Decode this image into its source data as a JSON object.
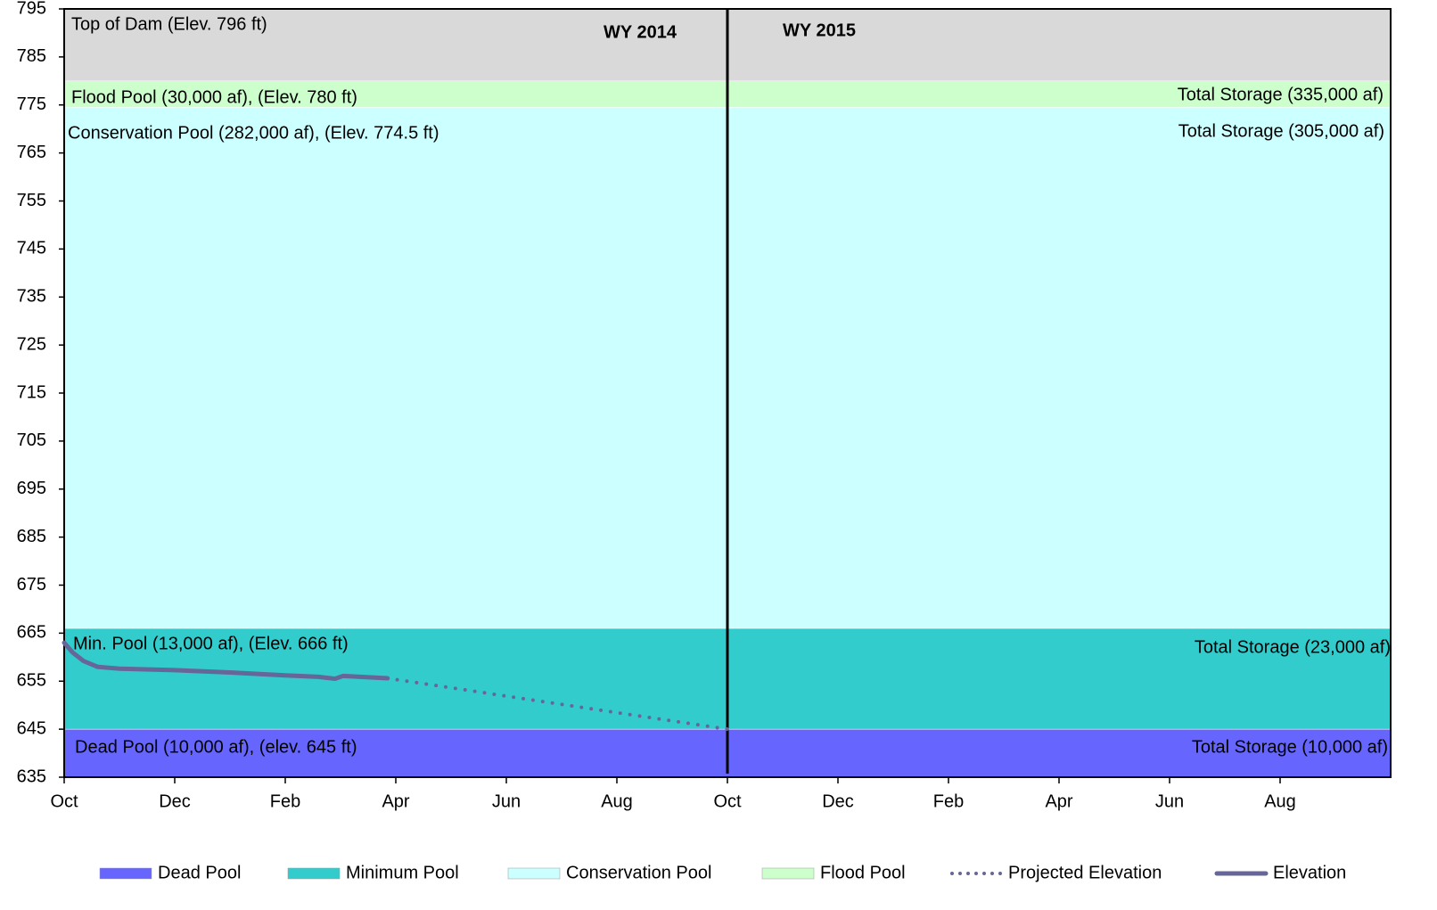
{
  "chart_data": {
    "type": "band-line",
    "ylim": [
      635,
      795
    ],
    "yticks": [
      635,
      645,
      655,
      665,
      675,
      685,
      695,
      705,
      715,
      725,
      735,
      745,
      755,
      765,
      775,
      785,
      795
    ],
    "xlim": [
      0,
      24
    ],
    "xticks": [
      {
        "value": 0,
        "label": "Oct"
      },
      {
        "value": 2,
        "label": "Dec"
      },
      {
        "value": 4,
        "label": "Feb"
      },
      {
        "value": 6,
        "label": "Apr"
      },
      {
        "value": 8,
        "label": "Jun"
      },
      {
        "value": 10,
        "label": "Aug"
      },
      {
        "value": 12,
        "label": "Oct"
      },
      {
        "value": 14,
        "label": "Dec"
      },
      {
        "value": 16,
        "label": "Feb"
      },
      {
        "value": 18,
        "label": "Apr"
      },
      {
        "value": 20,
        "label": "Jun"
      },
      {
        "value": 22,
        "label": "Aug"
      }
    ],
    "divider": 12,
    "bands": [
      {
        "name": "Dead Pool",
        "color": "#6666ff",
        "lower": 635,
        "upper": 645
      },
      {
        "name": "Minimum Pool",
        "color": "#33cccc",
        "lower": 645,
        "upper": 666
      },
      {
        "name": "Conservation Pool",
        "color": "#ccffff",
        "lower": 666,
        "upper": 774.5
      },
      {
        "name": "Flood Pool",
        "color": "#ccffcc",
        "lower": 774.5,
        "upper": 780
      }
    ],
    "series": [
      {
        "name": "Projected Elevation",
        "color": "#666699",
        "style": "dotted",
        "x": [
          5.85,
          12
        ],
        "values": [
          655.6,
          645
        ]
      },
      {
        "name": "Elevation",
        "color": "#666699",
        "style": "solid",
        "x": [
          0,
          0.15,
          0.35,
          0.6,
          1,
          2,
          3,
          4,
          4.6,
          4.9,
          5.05,
          5.85
        ],
        "values": [
          663,
          661,
          659.2,
          658,
          657.6,
          657.3,
          656.8,
          656.2,
          655.9,
          655.5,
          656.1,
          655.6
        ]
      }
    ],
    "annotations": [
      "Top of Dam (Elev. 796 ft)",
      "WY 2014",
      "WY 2015",
      "Flood Pool (30,000 af), (Elev. 780 ft)",
      "Total Storage (335,000 af)",
      "Conservation Pool (282,000 af), (Elev. 774.5 ft)",
      "Total Storage (305,000 af)",
      "Min. Pool (13,000 af), (Elev. 666 ft)",
      "Total Storage (23,000 af)",
      "Dead Pool (10,000 af), (elev. 645 ft)",
      "Total Storage (10,000 af)"
    ]
  }
}
